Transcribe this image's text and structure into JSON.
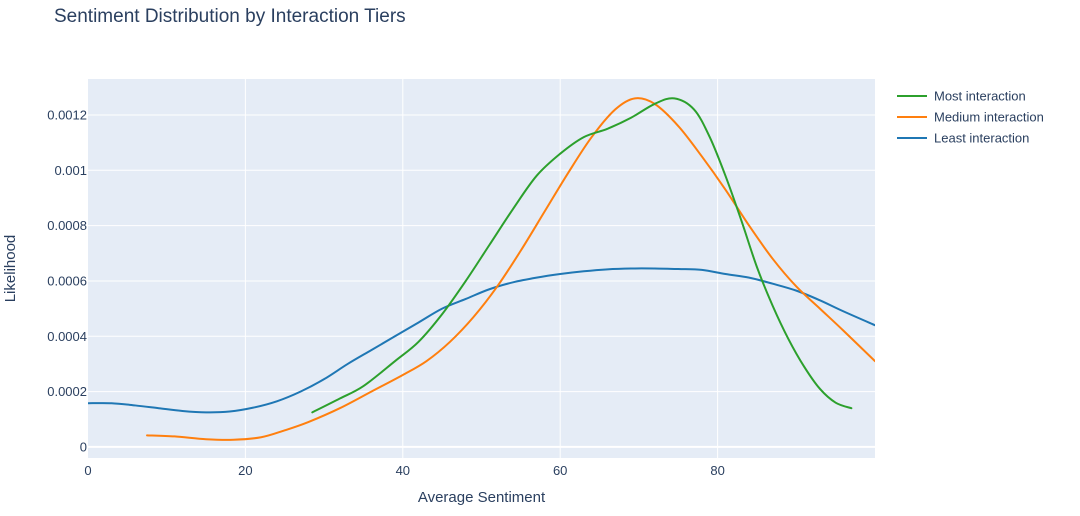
{
  "chart_data": {
    "type": "line",
    "title": "Sentiment Distribution by Interaction Tiers",
    "xlabel": "Average Sentiment",
    "ylabel": "Likelihood",
    "xlim": [
      0,
      100
    ],
    "ylim": [
      -4e-05,
      0.00133
    ],
    "x_ticks": [
      0,
      20,
      40,
      60,
      80
    ],
    "x_tick_labels": [
      "0",
      "20",
      "40",
      "60",
      "80"
    ],
    "y_ticks": [
      0,
      0.0002,
      0.0004,
      0.0006,
      0.0008,
      0.001,
      0.0012
    ],
    "y_tick_labels": [
      "0",
      "0.0002",
      "0.0004",
      "0.0006",
      "0.0008",
      "0.001",
      "0.0012"
    ],
    "grid": true,
    "legend_position": "top-right",
    "background_color": "#e5ecf6",
    "grid_color": "#ffffff",
    "series": [
      {
        "name": "Most interaction",
        "color": "#2ca02c",
        "points": [
          [
            28.5,
            0.000125
          ],
          [
            32,
            0.000175
          ],
          [
            35,
            0.00022
          ],
          [
            39,
            0.00031
          ],
          [
            42,
            0.00038
          ],
          [
            45,
            0.00048
          ],
          [
            48,
            0.0006
          ],
          [
            51,
            0.00073
          ],
          [
            54,
            0.00086
          ],
          [
            57,
            0.00098
          ],
          [
            60,
            0.00106
          ],
          [
            63,
            0.00112
          ],
          [
            66,
            0.00115
          ],
          [
            69,
            0.00119
          ],
          [
            72,
            0.00124
          ],
          [
            74.5,
            0.00126
          ],
          [
            77,
            0.00122
          ],
          [
            79,
            0.00112
          ],
          [
            81,
            0.00098
          ],
          [
            83,
            0.00082
          ],
          [
            85,
            0.00065
          ],
          [
            87,
            0.00051
          ],
          [
            89,
            0.00039
          ],
          [
            91,
            0.00029
          ],
          [
            93,
            0.00021
          ],
          [
            95,
            0.00016
          ],
          [
            97,
            0.00014
          ]
        ]
      },
      {
        "name": "Medium interaction",
        "color": "#ff7f0e",
        "points": [
          [
            7.5,
            4.2e-05
          ],
          [
            11,
            3.8e-05
          ],
          [
            15,
            2.8e-05
          ],
          [
            18.5,
            2.6e-05
          ],
          [
            22,
            3.5e-05
          ],
          [
            25,
            6e-05
          ],
          [
            28,
            9e-05
          ],
          [
            32,
            0.00014
          ],
          [
            36,
            0.0002
          ],
          [
            40,
            0.00026
          ],
          [
            43,
            0.00031
          ],
          [
            46,
            0.00038
          ],
          [
            49,
            0.00047
          ],
          [
            52,
            0.00058
          ],
          [
            55,
            0.00071
          ],
          [
            58,
            0.00085
          ],
          [
            61,
            0.00099
          ],
          [
            64,
            0.00112
          ],
          [
            67,
            0.00122
          ],
          [
            69.5,
            0.00126
          ],
          [
            72,
            0.00124
          ],
          [
            75,
            0.00116
          ],
          [
            78,
            0.00105
          ],
          [
            81,
            0.00093
          ],
          [
            84,
            0.0008
          ],
          [
            87,
            0.00068
          ],
          [
            90,
            0.00058
          ],
          [
            93,
            0.0005
          ],
          [
            96,
            0.00042
          ],
          [
            100,
            0.00031
          ]
        ]
      },
      {
        "name": "Least interaction",
        "color": "#1f77b4",
        "points": [
          [
            0,
            0.000158
          ],
          [
            3,
            0.000158
          ],
          [
            6,
            0.00015
          ],
          [
            9,
            0.00014
          ],
          [
            12,
            0.00013
          ],
          [
            15,
            0.000125
          ],
          [
            18,
            0.000128
          ],
          [
            21,
            0.000142
          ],
          [
            24,
            0.000165
          ],
          [
            27,
            0.0002
          ],
          [
            30,
            0.000245
          ],
          [
            33,
            0.0003
          ],
          [
            36,
            0.00035
          ],
          [
            39,
            0.0004
          ],
          [
            42,
            0.00045
          ],
          [
            45,
            0.0005
          ],
          [
            48,
            0.000535
          ],
          [
            51,
            0.00057
          ],
          [
            54,
            0.000595
          ],
          [
            57,
            0.000612
          ],
          [
            60,
            0.000625
          ],
          [
            63,
            0.000635
          ],
          [
            66,
            0.000642
          ],
          [
            69,
            0.000645
          ],
          [
            72,
            0.000645
          ],
          [
            75,
            0.000643
          ],
          [
            78,
            0.00064
          ],
          [
            81,
            0.000625
          ],
          [
            84,
            0.000612
          ],
          [
            87,
            0.00059
          ],
          [
            90,
            0.000565
          ],
          [
            93,
            0.00053
          ],
          [
            96,
            0.00049
          ],
          [
            100,
            0.00044
          ]
        ]
      }
    ]
  }
}
